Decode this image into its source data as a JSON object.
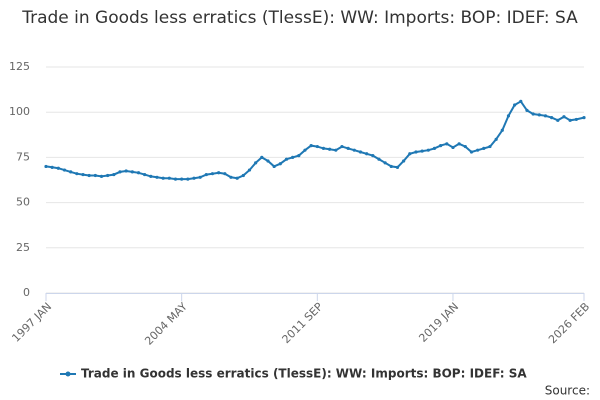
{
  "chart_data": {
    "type": "line",
    "title": "Trade in Goods less erratics (TlessE): WW: Imports: BOP: IDEF: SA",
    "source": "Source:",
    "x": [
      "1997 JAN",
      "1997 MAY",
      "1997 SEP",
      "1998 JAN",
      "1998 MAY",
      "1998 SEP",
      "1999 JAN",
      "1999 MAY",
      "1999 SEP",
      "2000 JAN",
      "2000 MAY",
      "2000 SEP",
      "2001 JAN",
      "2001 MAY",
      "2001 SEP",
      "2002 JAN",
      "2002 MAY",
      "2002 SEP",
      "2003 JAN",
      "2003 MAY",
      "2003 SEP",
      "2004 JAN",
      "2004 MAY",
      "2004 SEP",
      "2005 JAN",
      "2005 MAY",
      "2005 SEP",
      "2006 JAN",
      "2006 MAY",
      "2006 SEP",
      "2007 JAN",
      "2007 MAY",
      "2007 SEP",
      "2008 JAN",
      "2008 MAY",
      "2008 SEP",
      "2009 JAN",
      "2009 MAY",
      "2009 SEP",
      "2010 JAN",
      "2010 MAY",
      "2010 SEP",
      "2011 JAN",
      "2011 MAY",
      "2011 SEP",
      "2012 JAN",
      "2012 MAY",
      "2012 SEP",
      "2013 JAN",
      "2013 MAY",
      "2013 SEP",
      "2014 JAN",
      "2014 MAY",
      "2014 SEP",
      "2015 JAN",
      "2015 MAY",
      "2015 SEP",
      "2016 JAN",
      "2016 MAY",
      "2016 SEP",
      "2017 JAN",
      "2017 MAY",
      "2017 SEP",
      "2018 JAN",
      "2018 MAY",
      "2018 SEP",
      "2019 JAN",
      "2019 MAY",
      "2019 SEP",
      "2020 JAN",
      "2020 MAY",
      "2020 SEP",
      "2021 JAN",
      "2021 MAY",
      "2021 SEP",
      "2022 JAN",
      "2022 MAY",
      "2022 SEP",
      "2023 JAN",
      "2023 MAY",
      "2023 SEP",
      "2024 JAN",
      "2024 MAY",
      "2024 SEP",
      "2025 JAN",
      "2025 MAY",
      "2025 SEP",
      "2026 FEB"
    ],
    "series": [
      {
        "name": "Trade in Goods less erratics (TlessE): WW: Imports: BOP: IDEF: SA",
        "color": "#1f78b4",
        "values": [
          70,
          69.5,
          69,
          68,
          67,
          66,
          65.5,
          65,
          65,
          64.5,
          65,
          65.5,
          67,
          67.5,
          67,
          66.5,
          65.5,
          64.5,
          64,
          63.5,
          63.5,
          63,
          63,
          63,
          63.5,
          64,
          65.5,
          66,
          66.5,
          66,
          64,
          63.5,
          65,
          68,
          72,
          75,
          73,
          70,
          71.5,
          74,
          75,
          76,
          79,
          81.5,
          81,
          80,
          79.5,
          79,
          81,
          80,
          79,
          78,
          77,
          76,
          74,
          72,
          70,
          69.5,
          73,
          77,
          78,
          78.5,
          79,
          80,
          81.5,
          82.5,
          80.5,
          82.5,
          81,
          78,
          79,
          80,
          81,
          85,
          90,
          98,
          104,
          106,
          101,
          99,
          98.5,
          98,
          97,
          95.5,
          97.5,
          95.5,
          96,
          97
        ]
      }
    ],
    "xticks": [
      "1997 JAN",
      "2004 MAY",
      "2011 SEP",
      "2019 JAN",
      "2026 FEB"
    ],
    "ylim": [
      0,
      125
    ],
    "yticks": [
      0,
      25,
      50,
      75,
      100,
      125
    ],
    "grid": true
  }
}
